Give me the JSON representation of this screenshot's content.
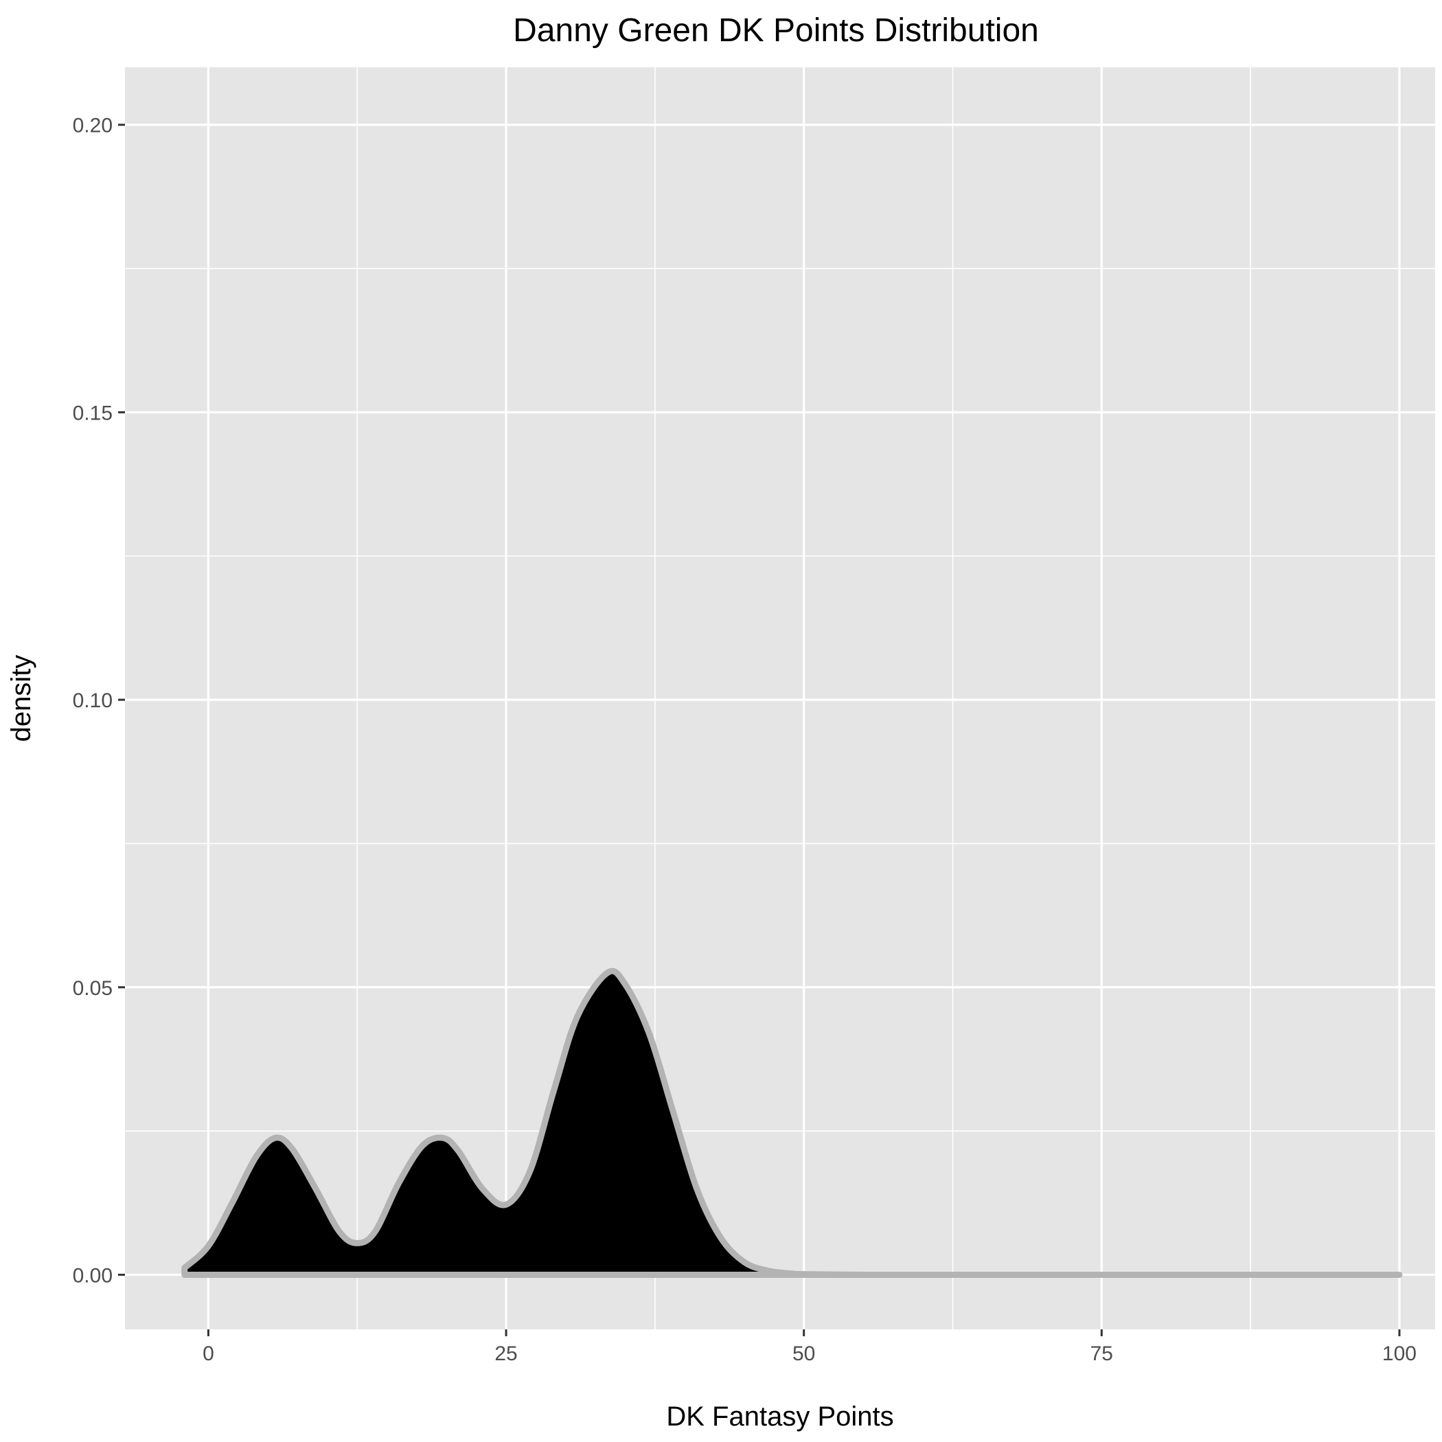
{
  "chart_data": {
    "type": "area",
    "title": "Danny Green DK Points Distribution",
    "xlabel": "DK Fantasy Points",
    "ylabel": "density",
    "xlim": [
      -7,
      103
    ],
    "ylim": [
      -0.0095,
      0.21
    ],
    "x_ticks": [
      0,
      25,
      50,
      75,
      100
    ],
    "x_tick_labels": [
      "0",
      "25",
      "50",
      "75",
      "100"
    ],
    "y_ticks": [
      0.0,
      0.05,
      0.1,
      0.15,
      0.2
    ],
    "y_tick_labels": [
      "0.00",
      "0.05",
      "0.10",
      "0.15",
      "0.20"
    ],
    "grid": true,
    "fill_color": "#000000",
    "line_color": "#b3b3b3",
    "panel_color": "#e5e5e5",
    "series": [
      {
        "x": [
          -2,
          0,
          2,
          4,
          5.6,
          7,
          9,
          11,
          12.5,
          14,
          16,
          18,
          19.7,
          21,
          23,
          25,
          27,
          29,
          31,
          33.5,
          35,
          37,
          39,
          41,
          43,
          45,
          47,
          49,
          50,
          55,
          60,
          70,
          80,
          90,
          100
        ],
        "y": [
          0.0012,
          0.005,
          0.0125,
          0.0205,
          0.0238,
          0.022,
          0.015,
          0.0075,
          0.0055,
          0.0075,
          0.016,
          0.0225,
          0.0238,
          0.0215,
          0.015,
          0.0122,
          0.018,
          0.032,
          0.045,
          0.0525,
          0.0505,
          0.042,
          0.0285,
          0.015,
          0.0065,
          0.0022,
          0.0007,
          0.0002,
          0.0001,
          0.0,
          0.0,
          0.0,
          0.0,
          0.0,
          0.0
        ]
      }
    ]
  }
}
